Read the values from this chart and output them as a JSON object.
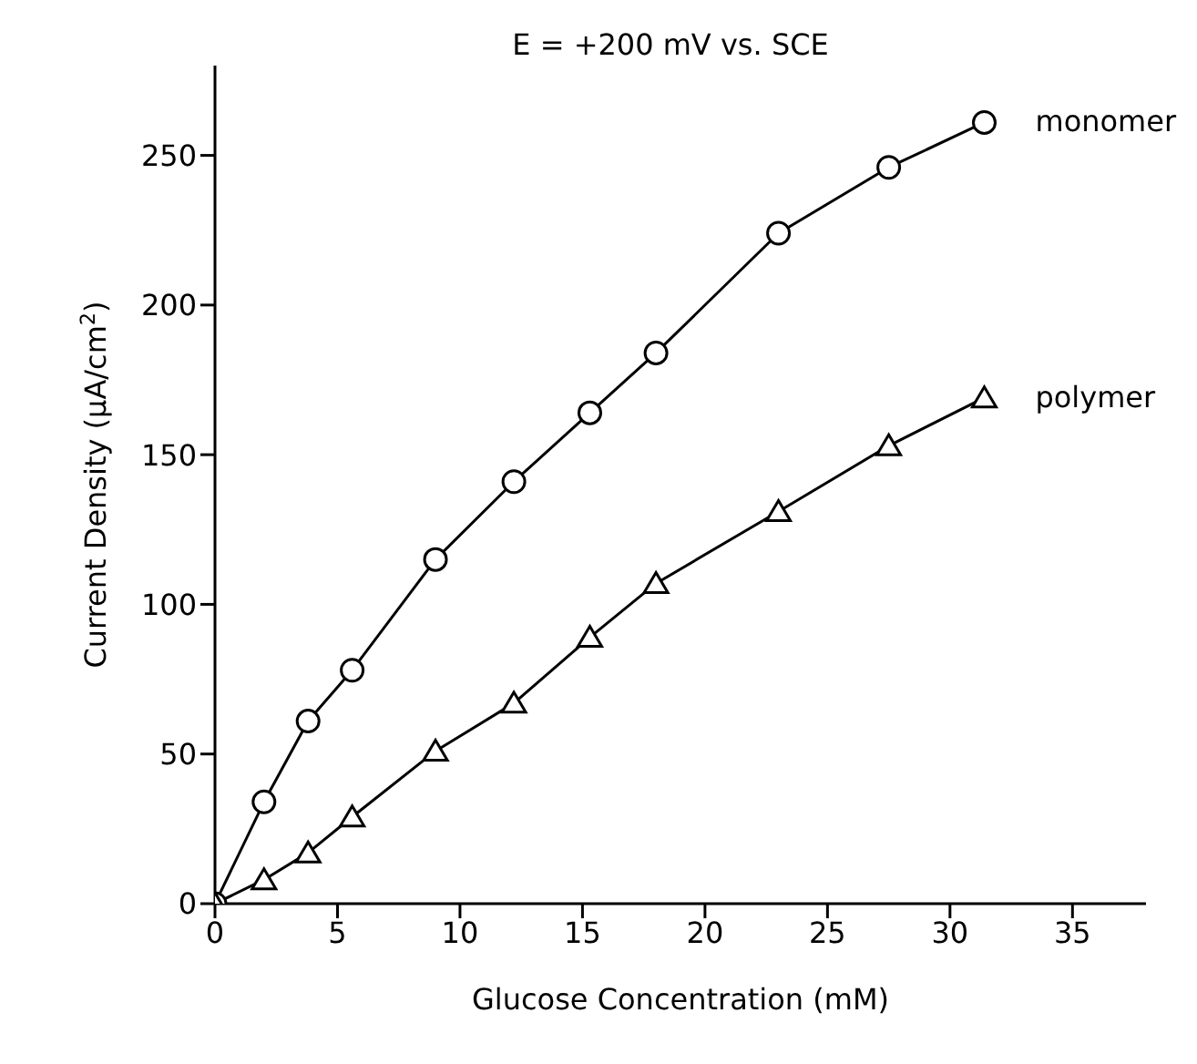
{
  "chart_data": {
    "type": "line",
    "title": "E = +200 mV vs. SCE",
    "xlabel": "Glucose Concentration (mM)",
    "ylabel": "Current Density (μA/cm$^{2}$)",
    "xlim": [
      0,
      38
    ],
    "xticks": [
      0,
      5,
      10,
      15,
      20,
      25,
      30,
      35
    ],
    "ylim": [
      0,
      280
    ],
    "yticks": [
      0,
      50,
      100,
      150,
      200,
      250
    ],
    "grid": false,
    "legend": false,
    "line_style": "solid",
    "series": [
      {
        "name": "monomer",
        "color": "#000000",
        "marker": "circle",
        "x": [
          0,
          2,
          3.8,
          5.6,
          9,
          12.2,
          15.3,
          18,
          23,
          27.5,
          31.4
        ],
        "values": [
          0,
          34,
          61,
          78,
          115,
          141,
          164,
          184,
          224,
          246,
          261
        ]
      },
      {
        "name": "polymer",
        "color": "#000000",
        "marker": "triangle",
        "x": [
          0,
          2,
          3.8,
          5.6,
          9,
          12.2,
          15.3,
          18,
          23,
          27.5,
          31.4
        ],
        "values": [
          0,
          8,
          17,
          29,
          51,
          67,
          89,
          107,
          131,
          153,
          169
        ]
      }
    ]
  }
}
